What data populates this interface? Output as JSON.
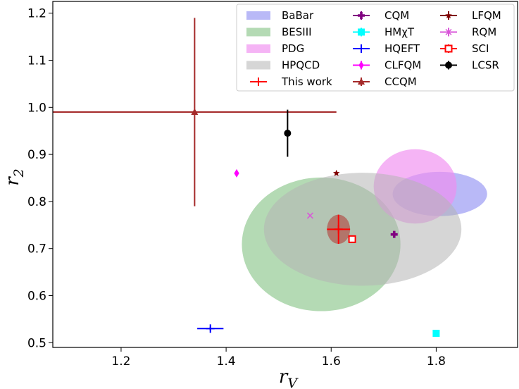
{
  "chart_data": {
    "type": "scatter",
    "title": "",
    "xlabel": "r",
    "xlabel_sub": "V",
    "ylabel": "r",
    "ylabel_sub": "2",
    "xlim": [
      1.07,
      1.955
    ],
    "ylim": [
      0.49,
      1.225
    ],
    "xticks": [
      "1.2",
      "1.4",
      "1.6",
      "1.8"
    ],
    "yticks": [
      "0.5",
      "0.6",
      "0.7",
      "0.8",
      "0.9",
      "1.0",
      "1.1",
      "1.2"
    ],
    "grid": false,
    "legend_position": "top-right",
    "ellipses": [
      {
        "name": "BaBar",
        "cx": 1.807,
        "cy": 0.816,
        "rx": 0.09,
        "ry": 0.047,
        "color": "#8080f0",
        "alpha": 0.55
      },
      {
        "name": "BESIII",
        "cx": 1.581,
        "cy": 0.709,
        "rx": 0.151,
        "ry": 0.142,
        "color": "#82c182",
        "alpha": 0.6
      },
      {
        "name": "PDG",
        "cx": 1.76,
        "cy": 0.832,
        "rx": 0.079,
        "ry": 0.079,
        "color": "#f08cf0",
        "alpha": 0.65
      },
      {
        "name": "HPQCD",
        "cx": 1.66,
        "cy": 0.741,
        "rx": 0.188,
        "ry": 0.12,
        "color": "#b4b4b4",
        "alpha": 0.55
      },
      {
        "name": "This work (band)",
        "cx": 1.614,
        "cy": 0.741,
        "rx": 0.022,
        "ry": 0.031,
        "color": "#b0524a",
        "alpha": 0.7
      }
    ],
    "points": [
      {
        "name": "This work",
        "x": 1.614,
        "y": 0.741,
        "xerr": 0.022,
        "yerr": 0.031,
        "marker": "plus",
        "color": "#ff0000"
      },
      {
        "name": "CQM",
        "x": 1.72,
        "y": 0.73,
        "xerr": 0.0,
        "yerr": 0.0,
        "marker": "plus-fat",
        "color": "#800080"
      },
      {
        "name": "HMχT",
        "x": 1.8,
        "y": 0.52,
        "xerr": 0.0,
        "yerr": 0.0,
        "marker": "square",
        "color": "#00ffff"
      },
      {
        "name": "HQEFT",
        "x": 1.37,
        "y": 0.53,
        "xerr": 0.025,
        "yerr": 0.004,
        "marker": "plus",
        "color": "#0000ff"
      },
      {
        "name": "CLFQM",
        "x": 1.42,
        "y": 0.86,
        "xerr": 0.0,
        "yerr": 0.0,
        "marker": "diamond",
        "color": "#ff00ff"
      },
      {
        "name": "CCQM",
        "x": 1.34,
        "y": 0.99,
        "xerr": 0.27,
        "yerr": 0.2,
        "marker": "triangle",
        "color": "#a52a2a"
      },
      {
        "name": "LFQM",
        "x": 1.61,
        "y": 0.86,
        "xerr": 0.0,
        "yerr": 0.0,
        "marker": "star",
        "color": "#800000"
      },
      {
        "name": "RQM",
        "x": 1.56,
        "y": 0.77,
        "xerr": 0.0,
        "yerr": 0.0,
        "marker": "x",
        "color": "#d957d9"
      },
      {
        "name": "SCI",
        "x": 1.64,
        "y": 0.72,
        "xerr": 0.0,
        "yerr": 0.0,
        "marker": "square-open",
        "color": "#ff0000"
      },
      {
        "name": "LCSR",
        "x": 1.517,
        "y": 0.945,
        "xerr": 0.0,
        "yerr": 0.05,
        "marker": "circle",
        "color": "#000000"
      }
    ],
    "legend": [
      {
        "label": "BaBar",
        "kind": "patch",
        "color": "#8080f0",
        "alpha": 0.55
      },
      {
        "label": "BESIII",
        "kind": "patch",
        "color": "#82c182",
        "alpha": 0.6
      },
      {
        "label": "PDG",
        "kind": "patch",
        "color": "#f08cf0",
        "alpha": 0.65
      },
      {
        "label": "HPQCD",
        "kind": "patch",
        "color": "#b4b4b4",
        "alpha": 0.55
      },
      {
        "label": "This work",
        "kind": "plus",
        "color": "#ff0000"
      },
      {
        "label": "CQM",
        "kind": "plus-fat",
        "color": "#800080"
      },
      {
        "label": "HMχT",
        "kind": "square",
        "color": "#00ffff"
      },
      {
        "label": "HQEFT",
        "kind": "plus",
        "color": "#0000ff"
      },
      {
        "label": "CLFQM",
        "kind": "diamond",
        "color": "#ff00ff"
      },
      {
        "label": "CCQM",
        "kind": "triangle",
        "color": "#a52a2a"
      },
      {
        "label": "LFQM",
        "kind": "star",
        "color": "#800000"
      },
      {
        "label": "RQM",
        "kind": "x",
        "color": "#d957d9"
      },
      {
        "label": "SCI",
        "kind": "square-open",
        "color": "#ff0000"
      },
      {
        "label": "LCSR",
        "kind": "circle",
        "color": "#000000"
      }
    ]
  }
}
